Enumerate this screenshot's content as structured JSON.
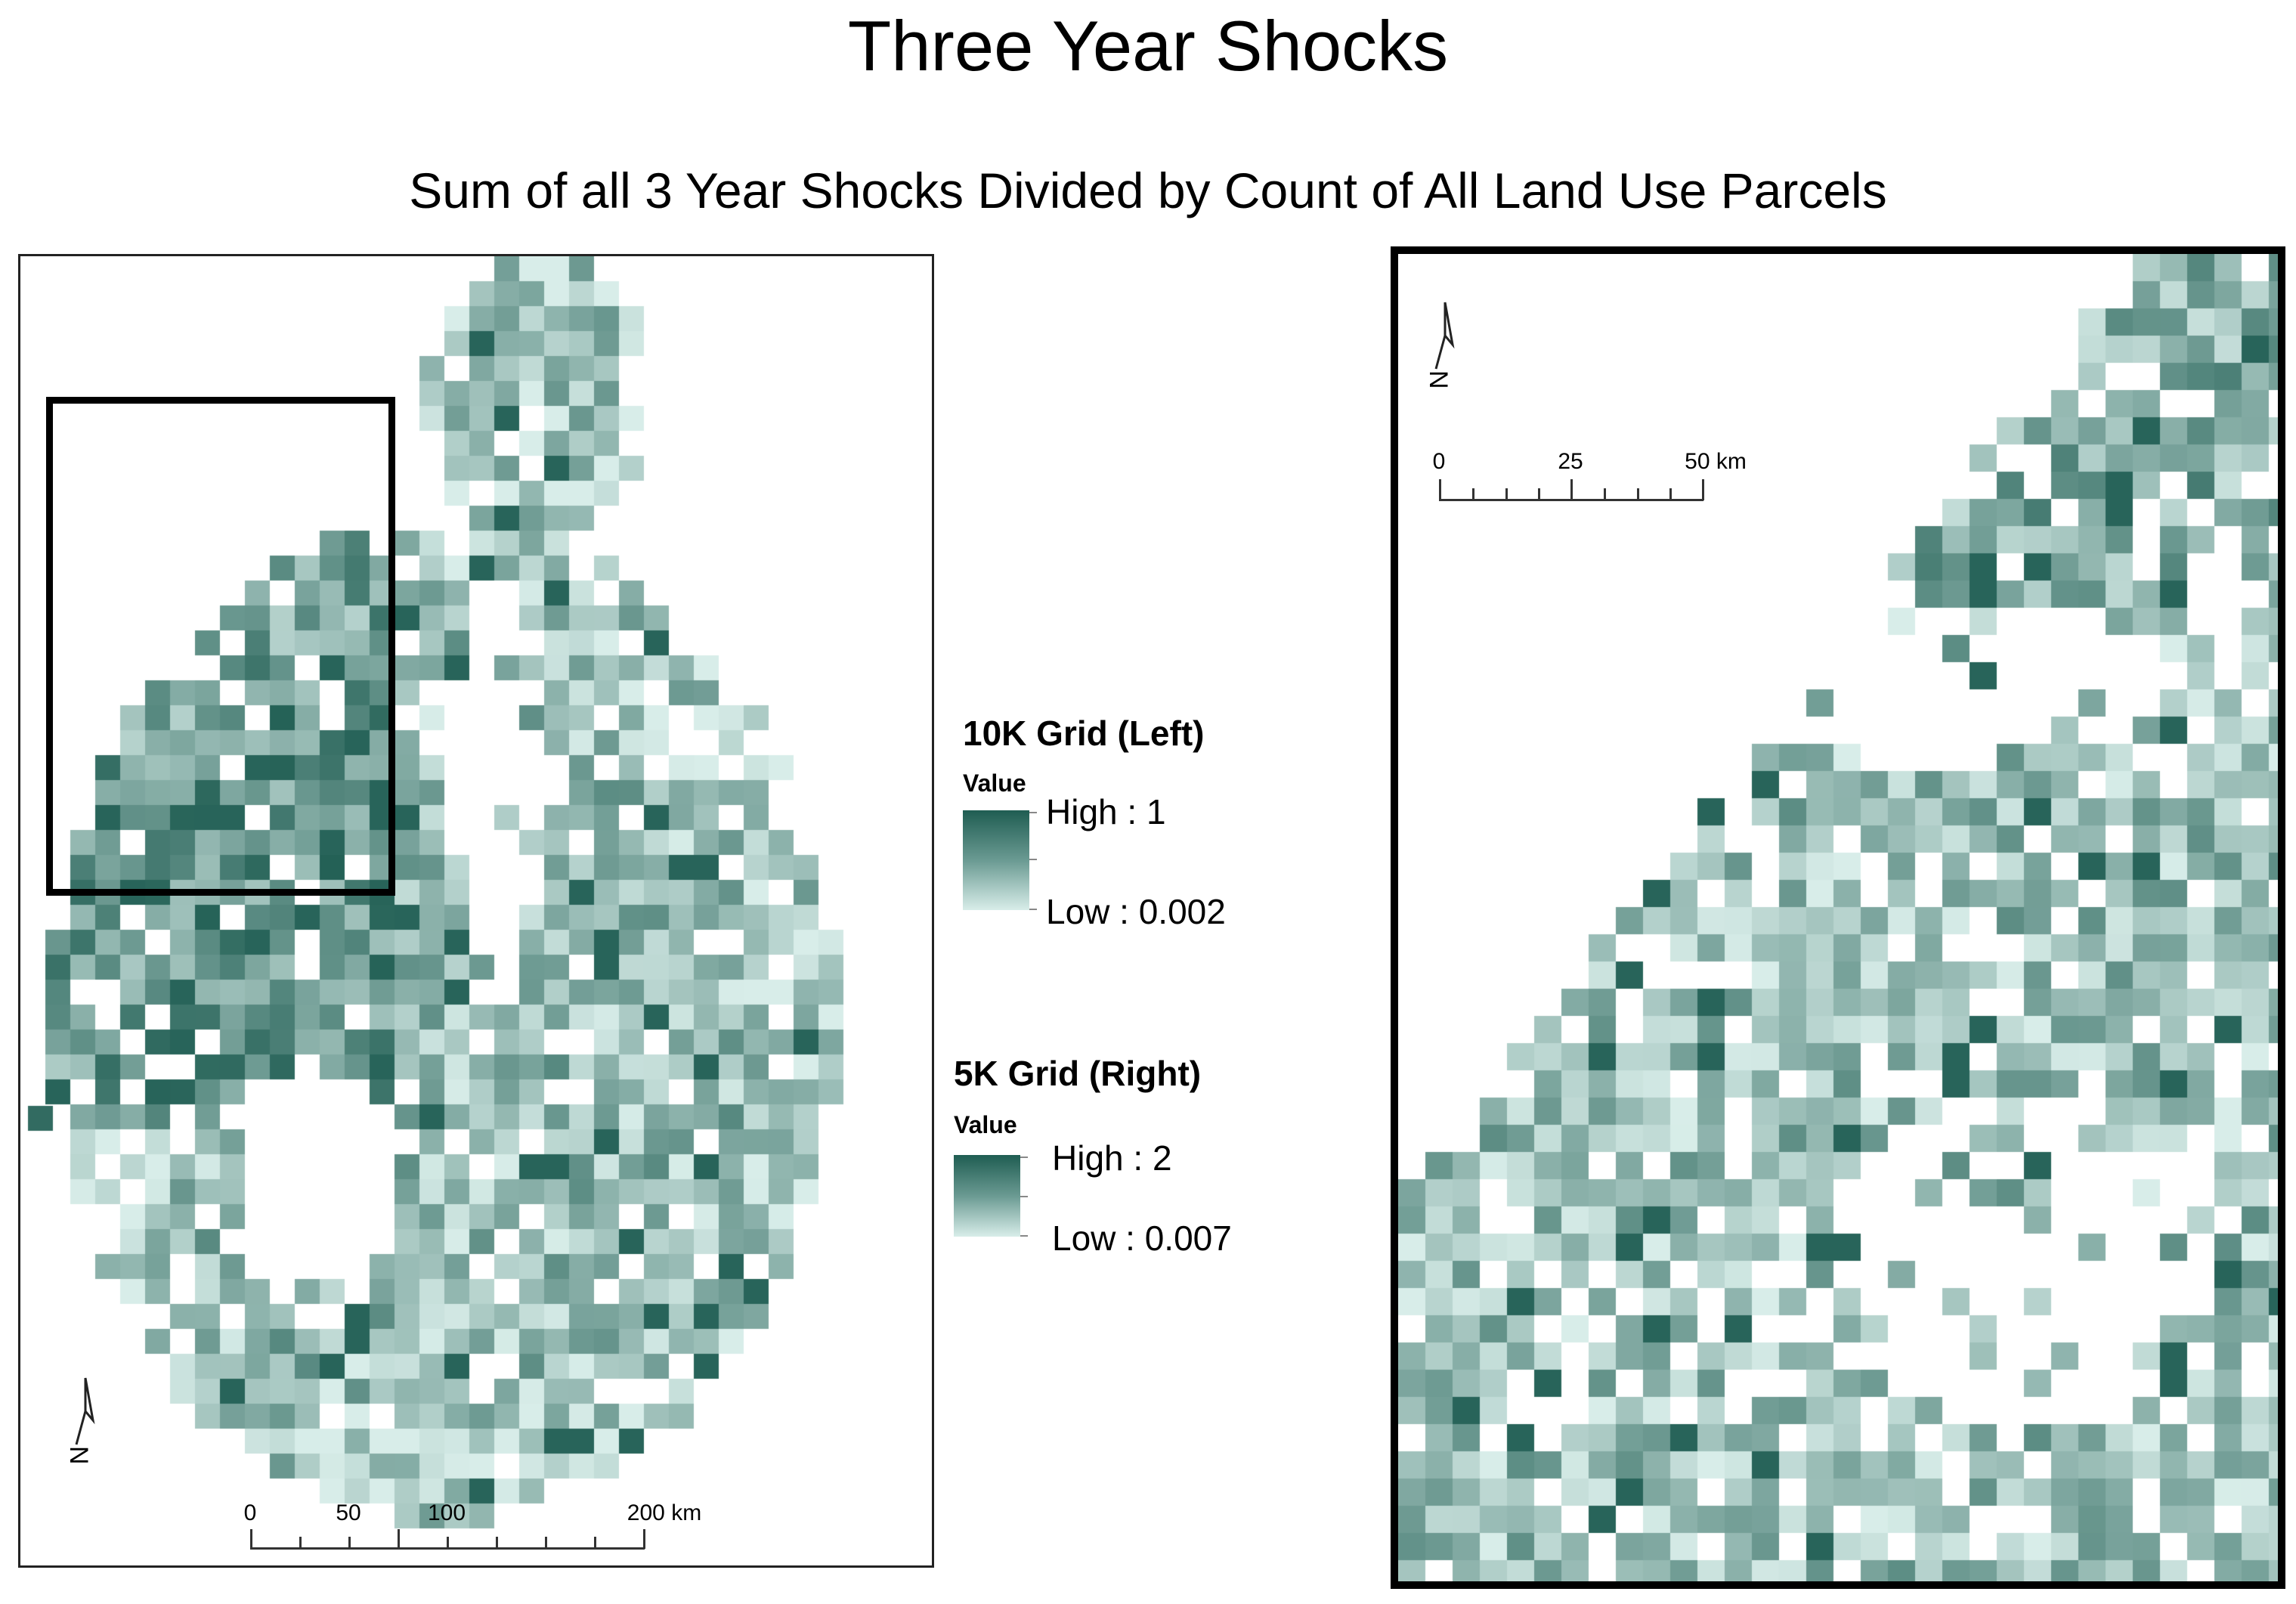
{
  "title": "Three Year Shocks",
  "subtitle": "Sum of all 3 Year Shocks Divided by Count of All Land Use Parcels",
  "colors": {
    "ramp_high": "#1f5d52",
    "ramp_low": "#d8ede9",
    "frame": "#000000",
    "background": "#ffffff"
  },
  "left_map": {
    "north_arrow_icon": "north-arrow-icon",
    "scale_bar": {
      "labels": [
        "0",
        "50",
        "100",
        "200 km"
      ]
    }
  },
  "right_map": {
    "north_arrow_icon": "north-arrow-icon",
    "scale_bar": {
      "labels": [
        "0",
        "25",
        "50 km"
      ]
    }
  },
  "legend": {
    "grid_10k": {
      "heading": "10K Grid (Left)",
      "value_label": "Value",
      "high": "High : 1",
      "low": "Low : 0.002"
    },
    "grid_5k": {
      "heading": "5K Grid (Right)",
      "value_label": "Value",
      "high": "High : 2",
      "low": "Low : 0.007"
    }
  }
}
